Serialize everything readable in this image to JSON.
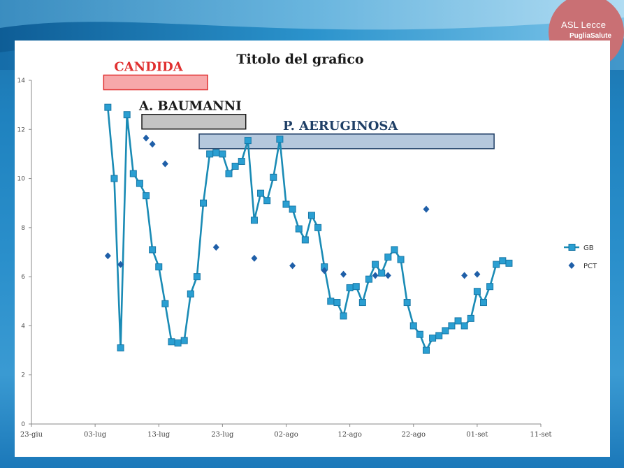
{
  "logo": {
    "text": "ASL Lecce",
    "subtext": "PugliaSalute"
  },
  "colors": {
    "line": "#1a8bb5",
    "square_fill": "#2a9fd2",
    "diamond": "#1f5fa8"
  },
  "chart_data": {
    "type": "line",
    "title": "Titolo del grafico",
    "xlabel": "",
    "ylabel": "",
    "ylim": [
      0,
      14
    ],
    "yticks": [
      0,
      2,
      4,
      6,
      8,
      10,
      12,
      14
    ],
    "xlim": [
      "2013-06-23",
      "2013-09-11"
    ],
    "xtick_labels": [
      "23-giu",
      "03-lug",
      "13-lug",
      "23-lug",
      "02-ago",
      "12-ago",
      "22-ago",
      "01-set",
      "11-set"
    ],
    "grid": false,
    "legend": {
      "placement": "right",
      "entries": [
        "GB",
        "PCT"
      ]
    },
    "series": [
      {
        "name": "GB",
        "style": "line-square",
        "points": [
          [
            "2013-07-05",
            12.9
          ],
          [
            "2013-07-06",
            10.0
          ],
          [
            "2013-07-07",
            3.1
          ],
          [
            "2013-07-08",
            12.6
          ],
          [
            "2013-07-09",
            10.2
          ],
          [
            "2013-07-10",
            9.8
          ],
          [
            "2013-07-11",
            9.3
          ],
          [
            "2013-07-12",
            7.1
          ],
          [
            "2013-07-13",
            6.4
          ],
          [
            "2013-07-14",
            4.9
          ],
          [
            "2013-07-15",
            3.35
          ],
          [
            "2013-07-16",
            3.3
          ],
          [
            "2013-07-17",
            3.4
          ],
          [
            "2013-07-18",
            5.3
          ],
          [
            "2013-07-19",
            6.0
          ],
          [
            "2013-07-20",
            9.0
          ],
          [
            "2013-07-21",
            11.0
          ],
          [
            "2013-07-22",
            11.05
          ],
          [
            "2013-07-23",
            11.0
          ],
          [
            "2013-07-24",
            10.2
          ],
          [
            "2013-07-25",
            10.5
          ],
          [
            "2013-07-26",
            10.7
          ],
          [
            "2013-07-27",
            11.55
          ],
          [
            "2013-07-28",
            8.3
          ],
          [
            "2013-07-29",
            9.4
          ],
          [
            "2013-07-30",
            9.1
          ],
          [
            "2013-07-31",
            10.05
          ],
          [
            "2013-08-01",
            11.6
          ],
          [
            "2013-08-02",
            8.95
          ],
          [
            "2013-08-03",
            8.75
          ],
          [
            "2013-08-04",
            7.95
          ],
          [
            "2013-08-05",
            7.5
          ],
          [
            "2013-08-06",
            8.5
          ],
          [
            "2013-08-07",
            8.0
          ],
          [
            "2013-08-08",
            6.4
          ],
          [
            "2013-08-09",
            5.0
          ],
          [
            "2013-08-10",
            4.95
          ],
          [
            "2013-08-11",
            4.4
          ],
          [
            "2013-08-12",
            5.55
          ],
          [
            "2013-08-13",
            5.6
          ],
          [
            "2013-08-14",
            4.95
          ],
          [
            "2013-08-15",
            5.9
          ],
          [
            "2013-08-16",
            6.5
          ],
          [
            "2013-08-17",
            6.15
          ],
          [
            "2013-08-18",
            6.8
          ],
          [
            "2013-08-19",
            7.1
          ],
          [
            "2013-08-20",
            6.7
          ],
          [
            "2013-08-21",
            4.95
          ],
          [
            "2013-08-22",
            4.0
          ],
          [
            "2013-08-23",
            3.65
          ],
          [
            "2013-08-24",
            3.0
          ],
          [
            "2013-08-25",
            3.5
          ],
          [
            "2013-08-26",
            3.6
          ],
          [
            "2013-08-27",
            3.8
          ],
          [
            "2013-08-28",
            4.0
          ],
          [
            "2013-08-29",
            4.2
          ],
          [
            "2013-08-30",
            4.0
          ],
          [
            "2013-08-31",
            4.3
          ],
          [
            "2013-09-01",
            5.4
          ],
          [
            "2013-09-02",
            4.95
          ],
          [
            "2013-09-03",
            5.6
          ],
          [
            "2013-09-04",
            6.5
          ],
          [
            "2013-09-05",
            6.65
          ],
          [
            "2013-09-06",
            6.55
          ]
        ]
      },
      {
        "name": "PCT",
        "style": "diamond",
        "points": [
          [
            "2013-07-05",
            6.85
          ],
          [
            "2013-07-07",
            6.5
          ],
          [
            "2013-07-11",
            11.65
          ],
          [
            "2013-07-12",
            11.4
          ],
          [
            "2013-07-14",
            10.6
          ],
          [
            "2013-07-22",
            7.2
          ],
          [
            "2013-07-28",
            6.75
          ],
          [
            "2013-08-03",
            6.45
          ],
          [
            "2013-08-08",
            6.25
          ],
          [
            "2013-08-11",
            6.1
          ],
          [
            "2013-08-16",
            6.05
          ],
          [
            "2013-08-18",
            6.05
          ],
          [
            "2013-08-24",
            8.75
          ],
          [
            "2013-08-30",
            6.05
          ],
          [
            "2013-09-01",
            6.1
          ]
        ]
      }
    ],
    "annotations": [
      {
        "label": "CANDIDA",
        "start": "2013-07-05",
        "end": "2013-07-20",
        "level": 13.9,
        "fill": "#f7a8aa",
        "stroke": "#e03030",
        "text_color": "#e03030"
      },
      {
        "label": "A. BAUMANNI",
        "start": "2013-07-11",
        "end": "2013-07-26",
        "level": 12.3,
        "fill": "#c4c4c4",
        "stroke": "#1a1a1a",
        "text_color": "#1a1a1a"
      },
      {
        "label": "P. AERUGINOSA",
        "start": "2013-07-20",
        "end": "2013-09-03",
        "level": 11.5,
        "fill": "#b5c8dd",
        "stroke": "#1f3f66",
        "text_color": "#1f3f66"
      }
    ]
  }
}
